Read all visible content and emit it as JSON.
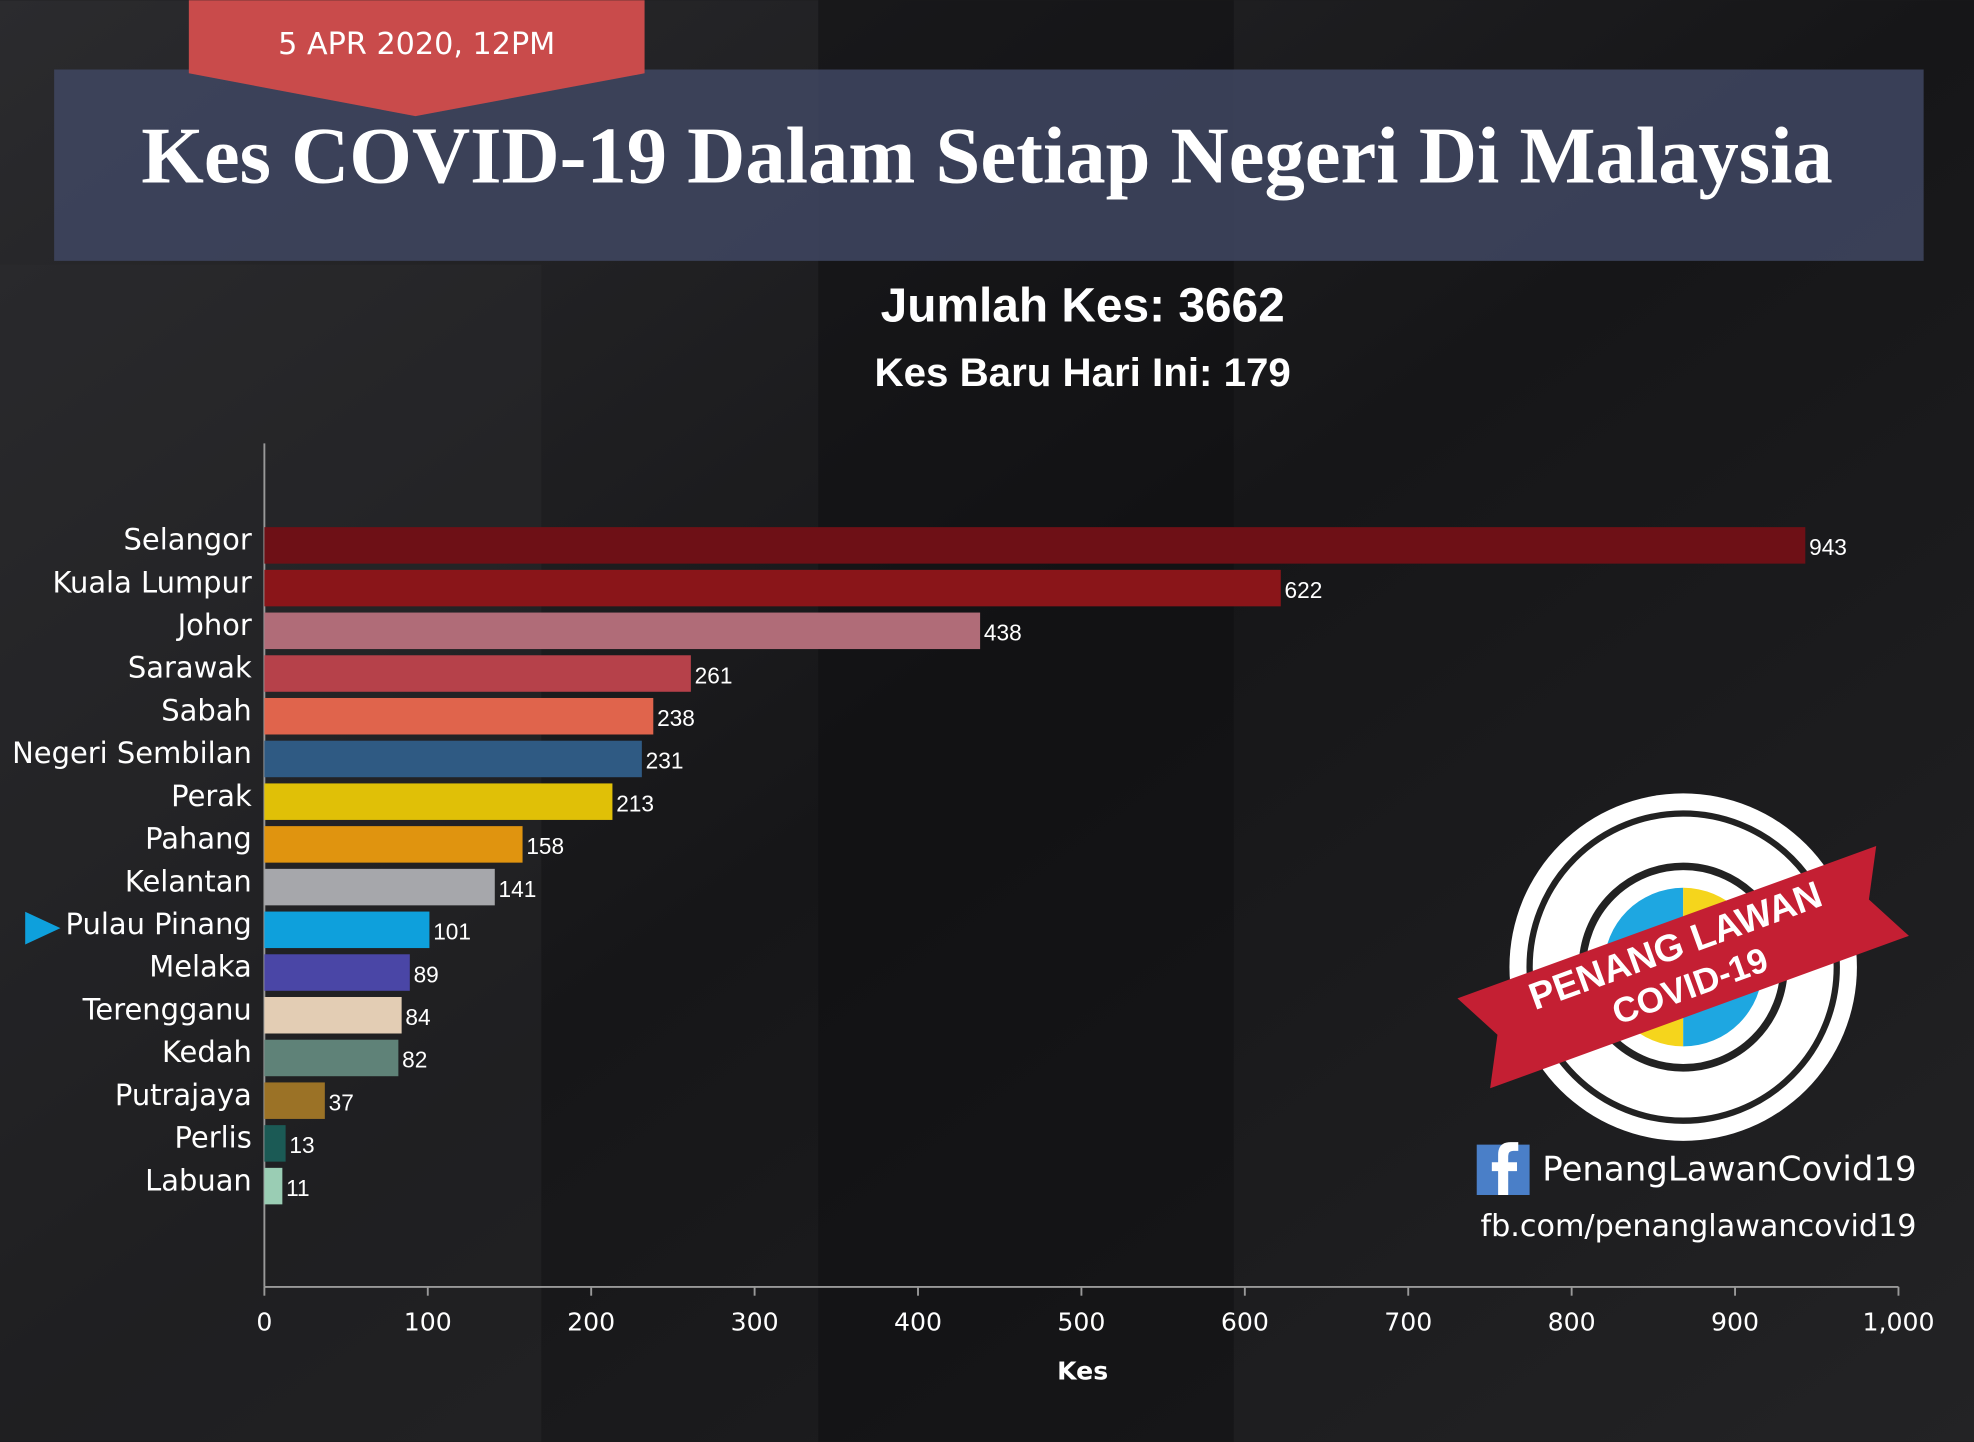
{
  "date_label": "5 APR 2020, 12PM",
  "chart_data": {
    "type": "hbar",
    "title": "Kes COVID-19 Dalam Setiap Negeri Di Malaysia",
    "subtitle": "Jumlah Kes: 3662",
    "subtitle2": "Kes Baru Hari Ini: 179",
    "xlabel": "Kes",
    "categories": [
      "Selangor",
      "Kuala Lumpur",
      "Johor",
      "Sarawak",
      "Sabah",
      "Negeri Sembilan",
      "Perak",
      "Pahang",
      "Kelantan",
      "Pulau Pinang",
      "Melaka",
      "Terengganu",
      "Kedah",
      "Putrajaya",
      "Perlis",
      "Labuan"
    ],
    "values": [
      943,
      622,
      438,
      261,
      238,
      231,
      213,
      158,
      141,
      101,
      89,
      84,
      82,
      37,
      13,
      11
    ],
    "colors": [
      "#6e1016",
      "#8a1519",
      "#b06c78",
      "#b6414a",
      "#e0644c",
      "#2f5a83",
      "#e0c007",
      "#e0940f",
      "#a6a7ab",
      "#0ea0dc",
      "#4a46a6",
      "#e3cdb4",
      "#5f8278",
      "#9b7226",
      "#1b5a55",
      "#9acdb4"
    ],
    "xlim": [
      0,
      1000
    ],
    "xticks": [
      0,
      100,
      200,
      300,
      400,
      500,
      600,
      700,
      800,
      900,
      {
        "value": 1000,
        "label": "1,000"
      }
    ]
  },
  "logo": {
    "line1": "PENANG LAWAN",
    "line2": "COVID-19"
  },
  "social": {
    "name": "PenangLawanCovid19",
    "url": "fb.com/penanglawancovid19"
  }
}
